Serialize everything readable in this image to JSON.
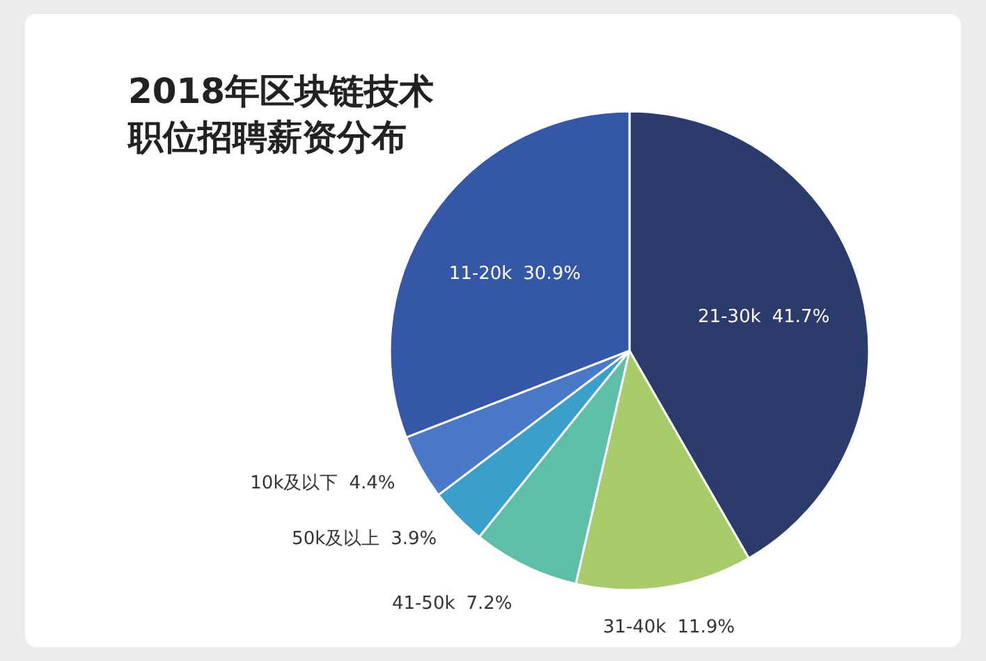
{
  "chart_data": {
    "type": "pie",
    "title": "2018年区块链技术职位招聘薪资分布",
    "categories": [
      "21-30k",
      "31-40k",
      "41-50k",
      "50k及以上",
      "10k及以下",
      "11-20k"
    ],
    "values": [
      41.7,
      11.9,
      7.2,
      3.9,
      4.4,
      30.9
    ],
    "colors": [
      "#2b3c6c",
      "#a9cc6a",
      "#5dbfa7",
      "#3a9fca",
      "#4a79c9",
      "#3557a8"
    ],
    "value_labels": [
      "41.7%",
      "11.9%",
      "7.2%",
      "3.9%",
      "4.4%",
      "30.9%"
    ]
  }
}
